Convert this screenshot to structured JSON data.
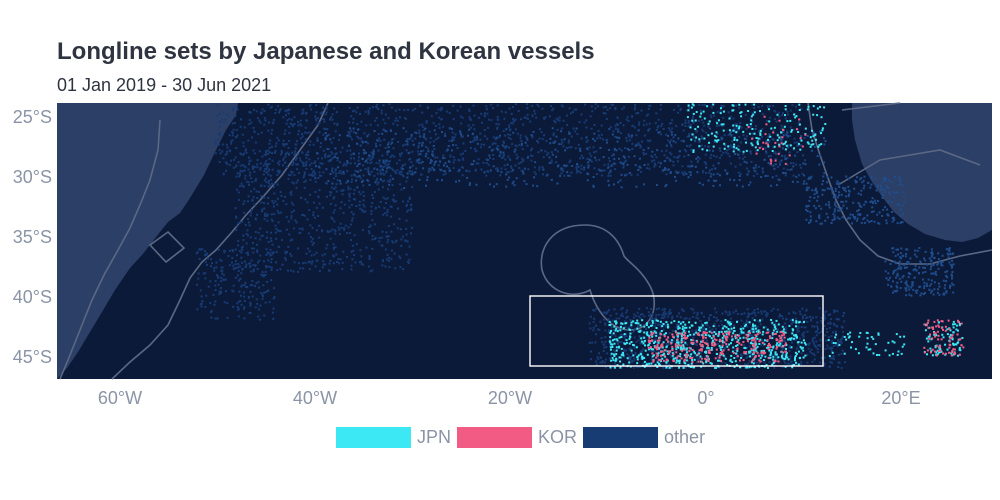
{
  "title": "Longline sets by Japanese and Korean vessels",
  "subtitle": "01 Jan 2019 - 30 Jun 2021",
  "y_ticks": [
    "25°S",
    "30°S",
    "35°S",
    "40°S",
    "45°S"
  ],
  "x_ticks": [
    "60°W",
    "40°W",
    "20°W",
    "0°",
    "20°E"
  ],
  "legend": [
    {
      "label": "JPN",
      "color": "#3de8f5"
    },
    {
      "label": "KOR",
      "color": "#f25c84"
    },
    {
      "label": "other",
      "color": "#173b73"
    }
  ],
  "colors": {
    "ocean": "#0c1a3a",
    "land": "#2c3f66",
    "boundary": "#5b6885",
    "box": "#ffffff"
  },
  "map_extent": {
    "lon_range": [
      -66,
      29
    ],
    "lat_range": [
      -47,
      -24
    ]
  },
  "highlight_box": {
    "lon_range": [
      -18,
      12
    ],
    "lat_range": [
      -46,
      -40
    ]
  }
}
